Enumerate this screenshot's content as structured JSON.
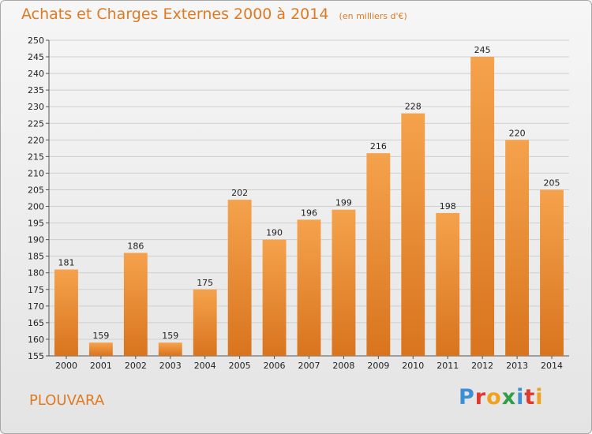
{
  "header": {
    "title": "Achats et Charges Externes 2000 à 2014",
    "subtitle": "(en milliers d'€)"
  },
  "footer": {
    "commune": "PLOUVARA",
    "logo": "Proxiti"
  },
  "colors": {
    "accent": "#e07a22",
    "bar_top": "#f5a24c",
    "bar_bottom": "#d9741e",
    "logo_letters": [
      "#3b8fd6",
      "#e0392b",
      "#f0a21d",
      "#2f9e44",
      "#3b8fd6",
      "#e0392b",
      "#f0a21d"
    ]
  },
  "chart_data": {
    "type": "bar",
    "title": "Achats et Charges Externes 2000 à 2014",
    "subtitle": "(en milliers d'€)",
    "xlabel": "",
    "ylabel": "",
    "categories": [
      "2000",
      "2001",
      "2002",
      "2003",
      "2004",
      "2005",
      "2006",
      "2007",
      "2008",
      "2009",
      "2010",
      "2011",
      "2012",
      "2013",
      "2014"
    ],
    "values": [
      181,
      159,
      186,
      159,
      175,
      202,
      190,
      196,
      199,
      216,
      228,
      198,
      245,
      220,
      205
    ],
    "ylim": [
      155,
      250
    ],
    "yticks": [
      155,
      160,
      165,
      170,
      175,
      180,
      185,
      190,
      195,
      200,
      205,
      210,
      215,
      220,
      225,
      230,
      235,
      240,
      245,
      250
    ],
    "grid": true,
    "legend": "none"
  }
}
